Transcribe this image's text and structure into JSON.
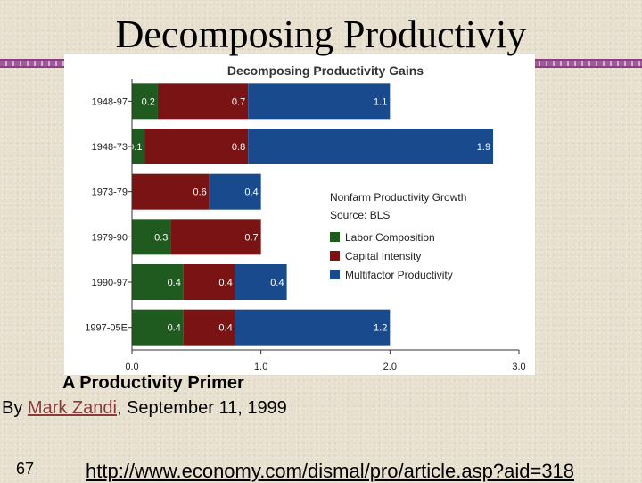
{
  "slide": {
    "title": "Decomposing Productiviy",
    "caption_title": "A Productivity Primer",
    "caption_by": "By ",
    "caption_author": "Mark Zandi",
    "caption_date": ", September 11, 1999",
    "slide_number": "67",
    "url": "http://www.economy.com/dismal/pro/article.asp?aid=318"
  },
  "colors": {
    "labor_composition": "#1f5a1f",
    "capital_intensity": "#7a1414",
    "multifactor_productivity": "#1a4a8e",
    "accent": "#8a3f84"
  },
  "chart_data": {
    "type": "bar",
    "orientation": "horizontal",
    "stacked": true,
    "title": "Decomposing Productivity Gains",
    "categories": [
      "1948-97",
      "1948-73",
      "1973-79",
      "1979-90",
      "1990-97",
      "1997-05E"
    ],
    "series": [
      {
        "name": "Labor Composition",
        "values": [
          0.2,
          0.1,
          0.0,
          0.3,
          0.4,
          0.4
        ],
        "labels": [
          "0.2",
          "0.1",
          "",
          "0.3",
          "0.4",
          "0.4"
        ]
      },
      {
        "name": "Capital Intensity",
        "values": [
          0.7,
          0.8,
          0.6,
          0.7,
          0.4,
          0.4
        ],
        "labels": [
          "0.7",
          "0.8",
          "0.6",
          "0.7",
          "0.4",
          "0.4"
        ]
      },
      {
        "name": "Multifactor Productivity",
        "values": [
          1.1,
          1.9,
          0.4,
          0.0,
          0.4,
          1.2
        ],
        "labels": [
          "1.1",
          "1.9",
          "0.4",
          "",
          "0.4",
          "1.2"
        ]
      }
    ],
    "xlim": [
      0,
      3
    ],
    "xticks": [
      "0.0",
      "1.0",
      "2.0",
      "3.0"
    ],
    "note_lines": [
      "Nonfarm Productivity Growth",
      "Source: BLS"
    ],
    "legend_position": "right"
  }
}
